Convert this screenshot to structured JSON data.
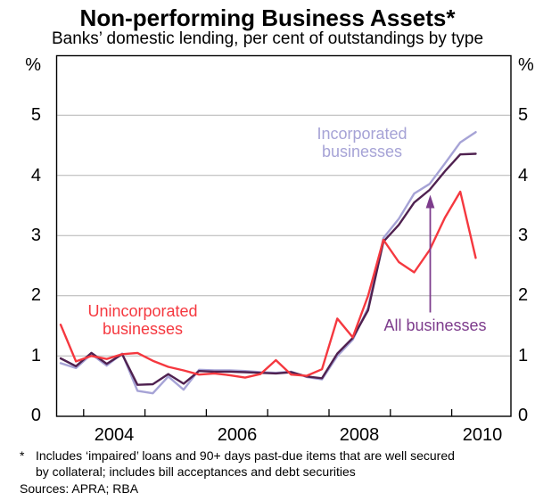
{
  "header": {
    "title": "Non-performing Business Assets*",
    "subtitle": "Banks’ domestic lending, per cent of outstandings by type"
  },
  "axes": {
    "y_left": [
      "%",
      "5",
      "4",
      "3",
      "2",
      "1",
      "0"
    ],
    "y_right": [
      "%",
      "5",
      "4",
      "3",
      "2",
      "1",
      "0"
    ],
    "x_labels": [
      "2004",
      "2006",
      "2008",
      "2010"
    ]
  },
  "annotations": {
    "unincorporated_label": "Unincorporated\nbusinesses",
    "incorporated_label": "Incorporated\nbusinesses",
    "all_businesses_label": "All businesses"
  },
  "footnote": {
    "marker": "*",
    "text": "Includes ‘impaired’ loans and 90+ days past-due items that are well secured\nby collateral; includes bill acceptances and debt securities",
    "sources": "Sources: APRA; RBA"
  },
  "colors": {
    "unincorporated": "#f5383f",
    "incorporated": "#a6a3d6",
    "all_businesses": "#4f2150",
    "annotation_purple": "#7d3c8c",
    "gridline": "#b3b3b3",
    "axis": "#000000"
  },
  "chart_data": {
    "type": "line",
    "title": "Non-performing Business Assets*",
    "subtitle": "Banks’ domestic lending, per cent of outstandings by type",
    "unit": "%",
    "ylim": [
      0,
      6
    ],
    "yticks": [
      0,
      1,
      2,
      3,
      4,
      5
    ],
    "grid": true,
    "x_tick_years": [
      2004,
      2005,
      2006,
      2007,
      2008,
      2009,
      2010
    ],
    "x": [
      "Sep 2003",
      "Dec 2003",
      "Mar 2004",
      "Jun 2004",
      "Sep 2004",
      "Dec 2004",
      "Mar 2005",
      "Jun 2005",
      "Sep 2005",
      "Dec 2005",
      "Mar 2006",
      "Jun 2006",
      "Sep 2006",
      "Dec 2006",
      "Mar 2007",
      "Jun 2007",
      "Sep 2007",
      "Dec 2007",
      "Mar 2008",
      "Jun 2008",
      "Sep 2008",
      "Dec 2008",
      "Mar 2009",
      "Jun 2009",
      "Sep 2009",
      "Dec 2009",
      "Mar 2010",
      "Jun 2010"
    ],
    "series": [
      {
        "name": "Incorporated businesses",
        "color": "#a6a3d6",
        "values": [
          0.88,
          0.8,
          1.03,
          0.84,
          1.04,
          0.42,
          0.38,
          0.66,
          0.44,
          0.77,
          0.76,
          0.76,
          0.75,
          0.73,
          0.72,
          0.74,
          0.65,
          0.61,
          1.0,
          1.27,
          1.8,
          2.96,
          3.28,
          3.7,
          3.86,
          4.2,
          4.55,
          4.72
        ]
      },
      {
        "name": "All businesses",
        "color": "#4f2150",
        "values": [
          0.96,
          0.83,
          1.05,
          0.87,
          1.03,
          0.52,
          0.53,
          0.7,
          0.54,
          0.75,
          0.74,
          0.74,
          0.73,
          0.72,
          0.71,
          0.73,
          0.66,
          0.63,
          1.04,
          1.3,
          1.76,
          2.9,
          3.18,
          3.55,
          3.76,
          4.07,
          4.35,
          4.36
        ]
      },
      {
        "name": "Unincorporated businesses",
        "color": "#f5383f",
        "values": [
          1.52,
          0.91,
          1.0,
          0.95,
          1.03,
          1.05,
          0.92,
          0.82,
          0.76,
          0.69,
          0.71,
          0.68,
          0.64,
          0.7,
          0.93,
          0.69,
          0.67,
          0.78,
          1.62,
          1.31,
          2.0,
          2.93,
          2.56,
          2.39,
          2.76,
          3.3,
          3.73,
          2.63
        ]
      }
    ]
  }
}
